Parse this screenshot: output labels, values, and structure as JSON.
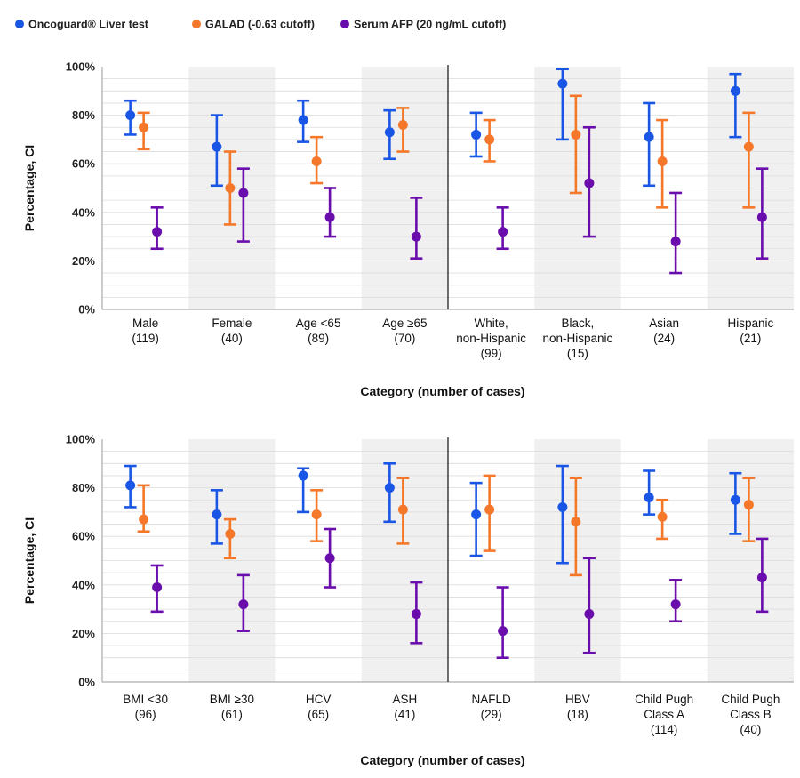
{
  "legend": [
    {
      "label": "Oncoguard® Liver test",
      "color": "#1a56e6"
    },
    {
      "label": "GALAD (-0.63 cutoff)",
      "color": "#f5782a"
    },
    {
      "label": "Serum AFP (20 ng/mL cutoff)",
      "color": "#6a0dad"
    }
  ],
  "chart_data": [
    {
      "type": "scatter",
      "ylabel": "Percentage, CI",
      "xlabel": "Category (number of cases)",
      "ylim": [
        0,
        100
      ],
      "yticks": [
        "100%",
        "80%",
        "60%",
        "40%",
        "20%",
        "0%"
      ],
      "grid": "horizontal minor lines",
      "categories": [
        {
          "lines": [
            "Male",
            "(119)"
          ],
          "shaded": false
        },
        {
          "lines": [
            "Female",
            "(40)"
          ],
          "shaded": true
        },
        {
          "lines": [
            "Age <65",
            "(89)"
          ],
          "shaded": false
        },
        {
          "lines": [
            "Age ≥65",
            "(70)"
          ],
          "shaded": true
        },
        {
          "lines": [
            "White,",
            "non-Hispanic",
            "(99)"
          ],
          "shaded": false
        },
        {
          "lines": [
            "Black,",
            "non-Hispanic",
            "(15)"
          ],
          "shaded": true
        },
        {
          "lines": [
            "Asian",
            "(24)"
          ],
          "shaded": false
        },
        {
          "lines": [
            "Hispanic",
            "(21)"
          ],
          "shaded": true
        }
      ],
      "series": [
        {
          "name": "Oncoguard® Liver test",
          "color": "#1a56e6",
          "points": [
            [
              80,
              72,
              86
            ],
            [
              67,
              51,
              80
            ],
            [
              78,
              69,
              86
            ],
            [
              73,
              62,
              82
            ],
            [
              72,
              63,
              81
            ],
            [
              93,
              70,
              99
            ],
            [
              71,
              51,
              85
            ],
            [
              90,
              71,
              97
            ]
          ]
        },
        {
          "name": "GALAD (-0.63 cutoff)",
          "color": "#f5782a",
          "points": [
            [
              75,
              66,
              81
            ],
            [
              50,
              35,
              65
            ],
            [
              61,
              52,
              71
            ],
            [
              76,
              65,
              83
            ],
            [
              70,
              61,
              78
            ],
            [
              72,
              48,
              88
            ],
            [
              61,
              42,
              78
            ],
            [
              67,
              42,
              81
            ]
          ]
        },
        {
          "name": "Serum AFP (20 ng/mL cutoff)",
          "color": "#6a0dad",
          "points": [
            [
              32,
              25,
              42
            ],
            [
              48,
              28,
              58
            ],
            [
              38,
              30,
              50
            ],
            [
              30,
              21,
              46
            ],
            [
              32,
              25,
              42
            ],
            [
              52,
              30,
              75
            ],
            [
              28,
              15,
              48
            ],
            [
              38,
              21,
              58
            ]
          ]
        }
      ]
    },
    {
      "type": "scatter",
      "ylabel": "Percentage, CI",
      "xlabel": "Category (number of cases)",
      "ylim": [
        0,
        100
      ],
      "yticks": [
        "100%",
        "80%",
        "60%",
        "40%",
        "20%",
        "0%"
      ],
      "grid": "horizontal minor lines",
      "categories": [
        {
          "lines": [
            "BMI <30",
            "(96)"
          ],
          "shaded": false
        },
        {
          "lines": [
            "BMI ≥30",
            "(61)"
          ],
          "shaded": true
        },
        {
          "lines": [
            "HCV",
            "(65)"
          ],
          "shaded": false
        },
        {
          "lines": [
            "ASH",
            "(41)"
          ],
          "shaded": true
        },
        {
          "lines": [
            "NAFLD",
            "(29)"
          ],
          "shaded": false
        },
        {
          "lines": [
            "HBV",
            "(18)"
          ],
          "shaded": true
        },
        {
          "lines": [
            "Child Pugh",
            "Class A",
            "(114)"
          ],
          "shaded": false
        },
        {
          "lines": [
            "Child Pugh",
            "Class B",
            "(40)"
          ],
          "shaded": true
        }
      ],
      "series": [
        {
          "name": "Oncoguard® Liver test",
          "color": "#1a56e6",
          "points": [
            [
              81,
              72,
              89
            ],
            [
              69,
              57,
              79
            ],
            [
              85,
              70,
              88
            ],
            [
              80,
              66,
              90
            ],
            [
              69,
              52,
              82
            ],
            [
              72,
              49,
              89
            ],
            [
              76,
              69,
              87
            ],
            [
              75,
              61,
              86
            ]
          ]
        },
        {
          "name": "GALAD (-0.63 cutoff)",
          "color": "#f5782a",
          "points": [
            [
              67,
              62,
              81
            ],
            [
              61,
              51,
              67
            ],
            [
              69,
              58,
              79
            ],
            [
              71,
              57,
              84
            ],
            [
              71,
              54,
              85
            ],
            [
              66,
              44,
              84
            ],
            [
              68,
              59,
              75
            ],
            [
              73,
              58,
              84
            ]
          ]
        },
        {
          "name": "Serum AFP (20 ng/mL cutoff)",
          "color": "#6a0dad",
          "points": [
            [
              39,
              29,
              48
            ],
            [
              32,
              21,
              44
            ],
            [
              51,
              39,
              63
            ],
            [
              28,
              16,
              41
            ],
            [
              21,
              10,
              39
            ],
            [
              28,
              12,
              51
            ],
            [
              32,
              25,
              42
            ],
            [
              43,
              29,
              59
            ]
          ]
        }
      ]
    }
  ]
}
